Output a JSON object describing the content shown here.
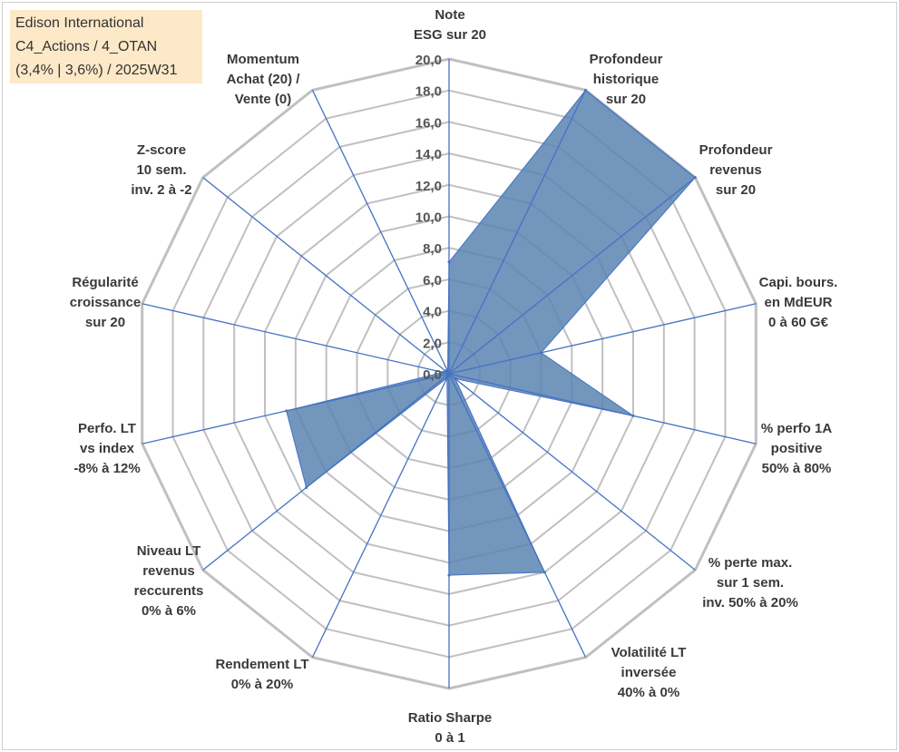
{
  "title_box": {
    "line1": "Edison International",
    "line2": "C4_Actions / 4_OTAN",
    "line3": "(3,4% | 3,6%) / 2025W31"
  },
  "colors": {
    "fill": "#5b84b1",
    "stroke": "#4472c4",
    "grid": "#c0c0c0",
    "title_bg": "#fde9c8"
  },
  "chart_data": {
    "type": "radar",
    "rmin": 0,
    "rmax": 20,
    "step": 2,
    "tick_labels": [
      "0,0",
      "2,0",
      "4,0",
      "6,0",
      "8,0",
      "10,0",
      "12,0",
      "14,0",
      "16,0",
      "18,0",
      "20,0"
    ],
    "grid": true,
    "axes": [
      {
        "label": [
          "Note",
          "ESG sur 20"
        ],
        "value": 7.1
      },
      {
        "label": [
          "Profondeur",
          "historique",
          "sur 20"
        ],
        "value": 20.0
      },
      {
        "label": [
          "Profondeur",
          "revenus",
          "sur 20"
        ],
        "value": 20.0
      },
      {
        "label": [
          "Capi. bours.",
          "en MdEUR",
          "0 à 60 G€"
        ],
        "value": 6.0
      },
      {
        "label": [
          "% perfo 1A",
          "positive",
          "50% à 80%"
        ],
        "value": 12.0
      },
      {
        "label": [
          "% perte max.",
          "sur 1 sem.",
          "inv. 50% à 20%"
        ],
        "value": 0.5
      },
      {
        "label": [
          "Volatilité LT",
          "inversée",
          "40% à 0%"
        ],
        "value": 14.0
      },
      {
        "label": [
          "Ratio Sharpe",
          "0 à 1"
        ],
        "value": 12.8
      },
      {
        "label": [
          "Rendement LT",
          "0% à 20%"
        ],
        "value": 0.3
      },
      {
        "label": [
          "Niveau LT",
          "revenus",
          "reccurents",
          "0% à 6%"
        ],
        "value": 11.6
      },
      {
        "label": [
          "Perfo. LT",
          "vs index",
          "-8% à 12%"
        ],
        "value": 10.6
      },
      {
        "label": [
          "Régularité",
          "croissance",
          "sur 20"
        ],
        "value": 0.4
      },
      {
        "label": [
          "Z-score",
          "10 sem.",
          "inv. 2 à -2"
        ],
        "value": 0.3
      },
      {
        "label": [
          "Momentum",
          "Achat (20) /",
          "Vente (0)"
        ],
        "value": 0.2
      }
    ]
  }
}
